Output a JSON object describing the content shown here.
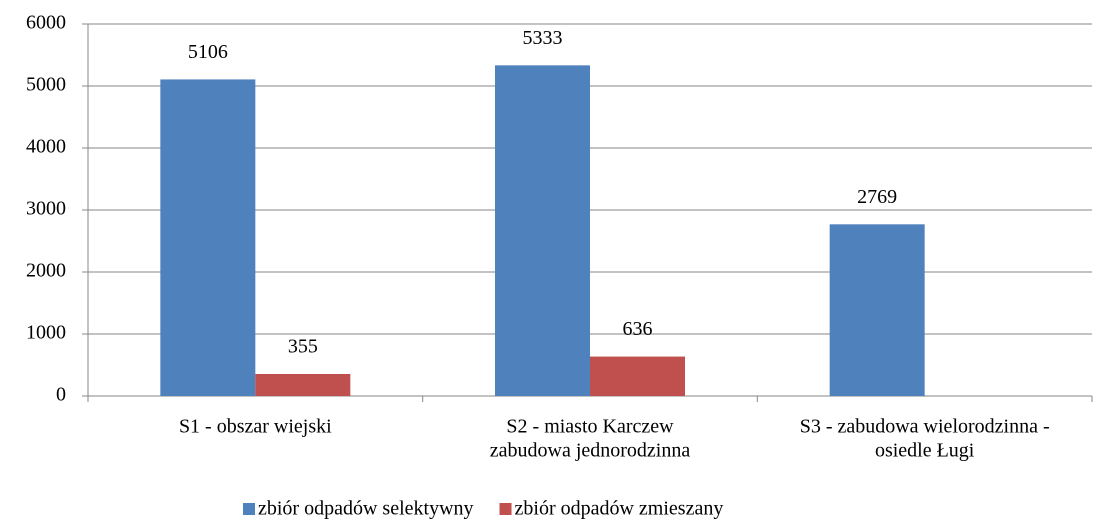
{
  "chart_data": {
    "type": "bar",
    "categories": [
      [
        "S1 - obszar wiejski"
      ],
      [
        "S2 - miasto Karczew",
        "zabudowa jednorodzinna"
      ],
      [
        "S3 - zabudowa wielorodzinna -",
        "osiedle Ługi"
      ]
    ],
    "series": [
      {
        "name": "zbiór odpadów selektywny",
        "color": "#4f81bd",
        "values": [
          5106,
          5333,
          2769
        ]
      },
      {
        "name": "zbiór odpadów zmieszany",
        "color": "#c0504d",
        "values": [
          355,
          636,
          null
        ]
      }
    ],
    "ylim": [
      0,
      6000
    ],
    "yticks": [
      0,
      1000,
      2000,
      3000,
      4000,
      5000,
      6000
    ],
    "grid": true,
    "data_labels": true,
    "legend": "bottom"
  }
}
